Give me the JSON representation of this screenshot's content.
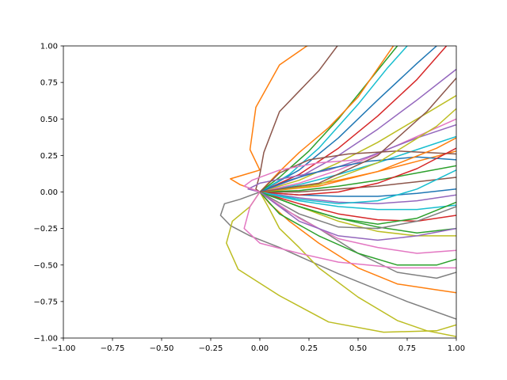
{
  "chart_data": {
    "type": "line",
    "title": "",
    "xlabel": "",
    "ylabel": "",
    "xlim": [
      -1.0,
      1.0
    ],
    "ylim": [
      -1.0,
      1.0
    ],
    "grid": false,
    "legend": "none",
    "x_ticks": [
      "−1.00",
      "−0.75",
      "−0.50",
      "−0.25",
      "0.00",
      "0.25",
      "0.50",
      "0.75",
      "1.00"
    ],
    "y_ticks": [
      "−1.00",
      "−0.75",
      "−0.50",
      "−0.25",
      "0.00",
      "0.25",
      "0.50",
      "0.75",
      "1.00"
    ],
    "x_tick_values": [
      -1.0,
      -0.75,
      -0.5,
      -0.25,
      0.0,
      0.25,
      0.5,
      0.75,
      1.0
    ],
    "y_tick_values": [
      -1.0,
      -0.75,
      -0.5,
      -0.25,
      0.0,
      0.25,
      0.5,
      0.75,
      1.0
    ],
    "palette": [
      "#1f77b4",
      "#ff7f0e",
      "#2ca02c",
      "#d62728",
      "#9467bd",
      "#8c564b",
      "#e377c2",
      "#7f7f7f",
      "#bcbd22",
      "#17becf"
    ],
    "series": [
      {
        "color": "#ff7f0e",
        "x": [
          0.0,
          -0.1,
          -0.15,
          -0.05,
          0.0,
          -0.05,
          -0.02,
          0.1,
          0.24,
          0.4
        ],
        "y": [
          0.0,
          0.05,
          0.09,
          0.13,
          0.15,
          0.29,
          0.58,
          0.87,
          1.0,
          1.08
        ]
      },
      {
        "color": "#8c564b",
        "x": [
          0.0,
          -0.02,
          0.0,
          0.02,
          0.1,
          0.3,
          0.45
        ],
        "y": [
          0.0,
          0.02,
          0.12,
          0.27,
          0.55,
          0.83,
          1.1
        ]
      },
      {
        "color": "#7f7f7f",
        "x": [
          0.0,
          -0.1,
          -0.18,
          -0.2,
          -0.15,
          -0.05,
          0.1,
          0.4,
          0.75,
          1.0
        ],
        "y": [
          0.0,
          -0.05,
          -0.08,
          -0.16,
          -0.23,
          -0.3,
          -0.38,
          -0.56,
          -0.75,
          -0.87
        ]
      },
      {
        "color": "#bcbd22",
        "x": [
          0.0,
          -0.05,
          -0.14,
          -0.17,
          -0.11,
          0.1,
          0.35,
          0.63,
          0.9,
          1.0
        ],
        "y": [
          0.0,
          -0.1,
          -0.2,
          -0.35,
          -0.53,
          -0.71,
          -0.89,
          -0.96,
          -0.95,
          -0.91
        ]
      },
      {
        "color": "#bcbd22",
        "x": [
          0.0,
          0.05,
          0.1,
          0.2,
          0.3,
          0.5,
          0.7,
          0.85,
          1.0
        ],
        "y": [
          0.0,
          -0.12,
          -0.25,
          -0.38,
          -0.52,
          -0.72,
          -0.88,
          -0.95,
          -0.99
        ]
      },
      {
        "color": "#7f7f7f",
        "x": [
          0.0,
          0.1,
          0.3,
          0.5,
          0.7,
          0.9,
          1.0
        ],
        "y": [
          0.0,
          -0.1,
          -0.25,
          -0.42,
          -0.55,
          -0.59,
          -0.55
        ]
      },
      {
        "color": "#ff7f0e",
        "x": [
          0.0,
          0.05,
          0.15,
          0.3,
          0.5,
          0.7,
          0.9,
          1.0
        ],
        "y": [
          0.0,
          -0.08,
          -0.2,
          -0.35,
          -0.52,
          -0.63,
          -0.67,
          -0.69
        ]
      },
      {
        "color": "#e377c2",
        "x": [
          0.0,
          -0.05,
          -0.08,
          0.0,
          0.2,
          0.4,
          0.7,
          1.0
        ],
        "y": [
          0.0,
          -0.1,
          -0.25,
          -0.35,
          -0.42,
          -0.48,
          -0.52,
          -0.52
        ]
      },
      {
        "color": "#e377c2",
        "x": [
          0.0,
          0.2,
          0.4,
          0.6,
          0.8,
          1.0
        ],
        "y": [
          0.0,
          -0.18,
          -0.32,
          -0.38,
          -0.42,
          -0.4
        ]
      },
      {
        "color": "#2ca02c",
        "x": [
          0.0,
          0.1,
          0.3,
          0.5,
          0.7,
          0.9,
          1.0
        ],
        "y": [
          0.0,
          -0.15,
          -0.3,
          -0.42,
          -0.5,
          -0.5,
          -0.46
        ]
      },
      {
        "color": "#bcbd22",
        "x": [
          0.0,
          0.2,
          0.4,
          0.6,
          0.8,
          1.0
        ],
        "y": [
          0.0,
          -0.1,
          -0.2,
          -0.27,
          -0.3,
          -0.3
        ]
      },
      {
        "color": "#2ca02c",
        "x": [
          0.0,
          0.2,
          0.4,
          0.6,
          0.8,
          1.0
        ],
        "y": [
          0.0,
          -0.1,
          -0.18,
          -0.24,
          -0.28,
          -0.25
        ]
      },
      {
        "color": "#d62728",
        "x": [
          0.0,
          0.2,
          0.4,
          0.6,
          0.8,
          1.0
        ],
        "y": [
          0.0,
          -0.08,
          -0.15,
          -0.19,
          -0.2,
          -0.16
        ]
      },
      {
        "color": "#17becf",
        "x": [
          0.0,
          0.2,
          0.4,
          0.6,
          0.8,
          1.0
        ],
        "y": [
          0.0,
          -0.06,
          -0.1,
          -0.12,
          -0.12,
          -0.09
        ]
      },
      {
        "color": "#9467bd",
        "x": [
          0.0,
          0.2,
          0.4,
          0.6,
          0.8,
          1.0
        ],
        "y": [
          0.0,
          -0.04,
          -0.07,
          -0.08,
          -0.06,
          -0.02
        ]
      },
      {
        "color": "#1f77b4",
        "x": [
          0.0,
          0.2,
          0.4,
          0.6,
          0.8,
          1.0
        ],
        "y": [
          0.0,
          -0.02,
          -0.03,
          -0.03,
          -0.01,
          0.02
        ]
      },
      {
        "color": "#8c564b",
        "x": [
          0.0,
          0.2,
          0.4,
          0.6,
          0.8,
          1.0
        ],
        "y": [
          0.0,
          0.0,
          0.02,
          0.04,
          0.07,
          0.1
        ]
      },
      {
        "color": "#2ca02c",
        "x": [
          0.0,
          0.2,
          0.4,
          0.6,
          0.8,
          1.0
        ],
        "y": [
          0.0,
          0.01,
          0.04,
          0.08,
          0.13,
          0.18
        ]
      },
      {
        "color": "#ff7f0e",
        "x": [
          0.0,
          0.2,
          0.4,
          0.6,
          0.8,
          1.0
        ],
        "y": [
          0.0,
          0.03,
          0.08,
          0.14,
          0.21,
          0.28
        ]
      },
      {
        "color": "#17becf",
        "x": [
          0.0,
          0.2,
          0.4,
          0.6,
          0.8,
          1.0
        ],
        "y": [
          0.0,
          0.05,
          0.12,
          0.2,
          0.29,
          0.38
        ]
      },
      {
        "color": "#e377c2",
        "x": [
          0.0,
          0.2,
          0.4,
          0.6,
          0.8,
          1.0
        ],
        "y": [
          0.0,
          0.06,
          0.15,
          0.26,
          0.38,
          0.5
        ]
      },
      {
        "color": "#bcbd22",
        "x": [
          0.0,
          0.2,
          0.4,
          0.6,
          0.8,
          1.0
        ],
        "y": [
          0.0,
          0.08,
          0.2,
          0.34,
          0.5,
          0.66
        ]
      },
      {
        "color": "#9467bd",
        "x": [
          0.0,
          0.2,
          0.4,
          0.6,
          0.8,
          1.0
        ],
        "y": [
          0.0,
          0.1,
          0.25,
          0.43,
          0.63,
          0.84
        ]
      },
      {
        "color": "#d62728",
        "x": [
          0.0,
          0.2,
          0.4,
          0.6,
          0.8,
          0.95
        ],
        "y": [
          0.0,
          0.12,
          0.3,
          0.52,
          0.77,
          1.0
        ]
      },
      {
        "color": "#1f77b4",
        "x": [
          0.0,
          0.2,
          0.4,
          0.6,
          0.8,
          0.9
        ],
        "y": [
          0.0,
          0.15,
          0.37,
          0.63,
          0.88,
          1.0
        ]
      },
      {
        "color": "#17becf",
        "x": [
          0.0,
          0.15,
          0.3,
          0.5,
          0.65,
          0.75
        ],
        "y": [
          0.0,
          0.12,
          0.3,
          0.6,
          0.85,
          1.0
        ]
      },
      {
        "color": "#2ca02c",
        "x": [
          0.0,
          0.1,
          0.25,
          0.4,
          0.55,
          0.7
        ],
        "y": [
          0.0,
          0.1,
          0.28,
          0.5,
          0.75,
          1.0
        ]
      },
      {
        "color": "#ff7f0e",
        "x": [
          0.0,
          0.1,
          0.2,
          0.35,
          0.5,
          0.68
        ],
        "y": [
          0.0,
          0.14,
          0.27,
          0.44,
          0.65,
          1.0
        ]
      },
      {
        "color": "#9467bd",
        "x": [
          0.0,
          -0.06,
          0.0,
          0.15,
          0.35,
          0.55,
          0.8,
          1.0
        ],
        "y": [
          0.0,
          0.02,
          0.06,
          0.1,
          0.15,
          0.24,
          0.37,
          0.46
        ]
      },
      {
        "color": "#8c564b",
        "x": [
          0.0,
          0.1,
          0.25,
          0.45,
          0.7,
          1.0
        ],
        "y": [
          0.0,
          0.13,
          0.22,
          0.26,
          0.28,
          0.26
        ]
      },
      {
        "color": "#1f77b4",
        "x": [
          0.0,
          0.15,
          0.35,
          0.55,
          0.8,
          1.0
        ],
        "y": [
          0.0,
          0.08,
          0.16,
          0.21,
          0.24,
          0.22
        ]
      },
      {
        "color": "#e377c2",
        "x": [
          0.0,
          -0.08,
          -0.04,
          0.1,
          0.3,
          0.5
        ],
        "y": [
          0.0,
          0.04,
          0.08,
          0.15,
          0.2,
          0.22
        ]
      },
      {
        "color": "#d62728",
        "x": [
          0.0,
          0.2,
          0.4,
          0.6,
          0.8,
          1.0
        ],
        "y": [
          0.0,
          -0.02,
          0.0,
          0.06,
          0.16,
          0.3
        ]
      },
      {
        "color": "#17becf",
        "x": [
          0.0,
          0.2,
          0.4,
          0.6,
          0.8,
          1.0
        ],
        "y": [
          0.0,
          -0.05,
          -0.08,
          -0.06,
          0.02,
          0.15
        ]
      },
      {
        "color": "#2ca02c",
        "x": [
          0.0,
          0.2,
          0.4,
          0.6,
          0.8,
          1.0
        ],
        "y": [
          0.0,
          -0.1,
          -0.18,
          -0.22,
          -0.18,
          -0.07
        ]
      },
      {
        "color": "#7f7f7f",
        "x": [
          0.0,
          0.2,
          0.4,
          0.6,
          0.8,
          1.0
        ],
        "y": [
          0.0,
          -0.15,
          -0.24,
          -0.25,
          -0.2,
          -0.1
        ]
      },
      {
        "color": "#9467bd",
        "x": [
          0.0,
          0.2,
          0.4,
          0.6,
          0.8,
          1.0
        ],
        "y": [
          0.0,
          -0.2,
          -0.3,
          -0.33,
          -0.3,
          -0.25
        ]
      },
      {
        "color": "#ff7f0e",
        "x": [
          0.0,
          0.3,
          0.6,
          0.9,
          1.0
        ],
        "y": [
          0.0,
          0.04,
          0.14,
          0.3,
          0.37
        ]
      },
      {
        "color": "#bcbd22",
        "x": [
          0.0,
          0.3,
          0.6,
          0.9,
          1.0
        ],
        "y": [
          0.0,
          0.05,
          0.2,
          0.45,
          0.57
        ]
      },
      {
        "color": "#8c564b",
        "x": [
          0.0,
          0.3,
          0.6,
          0.85,
          1.0
        ],
        "y": [
          0.0,
          0.06,
          0.25,
          0.55,
          0.78
        ]
      }
    ]
  }
}
